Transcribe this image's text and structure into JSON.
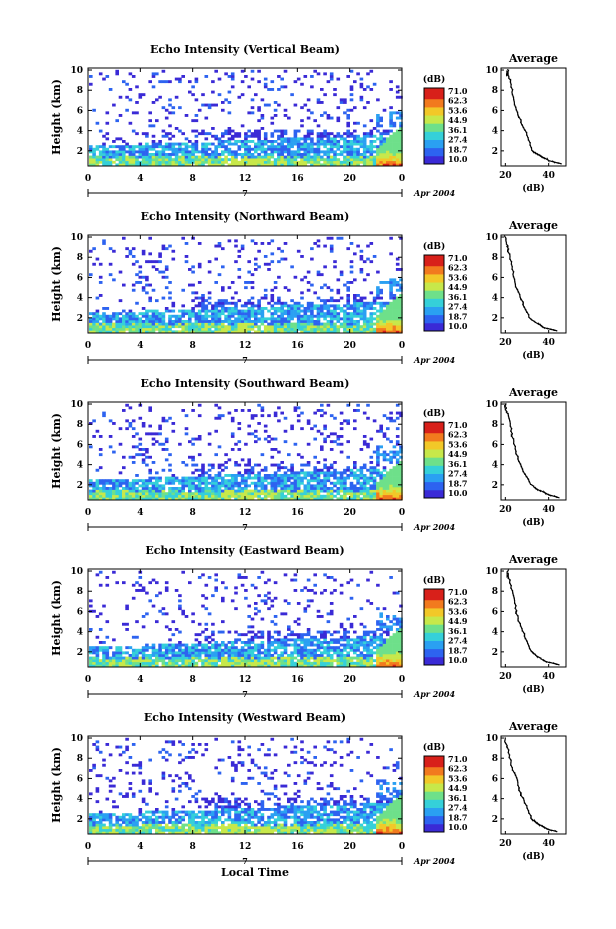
{
  "common": {
    "y_label": "Height (km)",
    "y_ticks": [
      2,
      4,
      6,
      8,
      10
    ],
    "x_ticks": [
      "0",
      "4",
      "8",
      "12",
      "16",
      "20",
      "0"
    ],
    "date_label_mid": "7",
    "date_label_right": "Apr 2004",
    "colorbar_unit": "(dB)",
    "colorbar_ticks": [
      "71.0",
      "62.3",
      "53.6",
      "44.9",
      "36.1",
      "27.4",
      "18.7",
      "10.0"
    ],
    "average_title": "Average",
    "average_xlabel": "(dB)",
    "average_xticks": [
      "20",
      "40"
    ],
    "bottom_xlabel": "Local Time",
    "colors": [
      "#3a2ad6",
      "#2d63f0",
      "#2aa0f2",
      "#35d0d9",
      "#6ee08a",
      "#c7e84a",
      "#f2c828",
      "#f27a1e",
      "#d8201a"
    ]
  },
  "chart_data": [
    {
      "type": "heatmap",
      "title": "Echo Intensity (Vertical Beam)",
      "xlabel": "",
      "ylabel": "Height (km)",
      "xlim": [
        0,
        24
      ],
      "ylim": [
        0.5,
        10.2
      ],
      "color_scale_db": [
        10.0,
        71.0
      ],
      "average_profile": {
        "x_db": [
          46,
          40,
          36,
          32,
          31,
          29,
          27,
          25,
          24,
          23,
          22,
          21,
          21
        ],
        "height_km": [
          0.7,
          1.0,
          1.5,
          2.0,
          3.0,
          4.0,
          5.0,
          6.0,
          7.0,
          8.0,
          9.0,
          9.5,
          10.0
        ],
        "xlim": [
          18,
          48
        ]
      }
    },
    {
      "type": "heatmap",
      "title": "Echo Intensity (Northward Beam)",
      "xlabel": "",
      "ylabel": "Height (km)",
      "xlim": [
        0,
        24
      ],
      "ylim": [
        0.5,
        10.2
      ],
      "color_scale_db": [
        10.0,
        71.0
      ],
      "average_profile": {
        "x_db": [
          44,
          38,
          34,
          31,
          29,
          27,
          25,
          24,
          23,
          22,
          21,
          20,
          20
        ],
        "height_km": [
          0.7,
          1.0,
          1.5,
          2.0,
          3.0,
          4.0,
          5.0,
          6.0,
          7.0,
          8.0,
          9.0,
          9.5,
          10.0
        ],
        "xlim": [
          18,
          48
        ]
      }
    },
    {
      "type": "heatmap",
      "title": "Echo Intensity (Southward Beam)",
      "xlabel": "",
      "ylabel": "Height (km)",
      "xlim": [
        0,
        24
      ],
      "ylim": [
        0.5,
        10.2
      ],
      "color_scale_db": [
        10.0,
        71.0
      ],
      "average_profile": {
        "x_db": [
          45,
          40,
          35,
          32,
          29,
          27,
          25,
          24,
          23,
          22,
          21,
          20,
          20
        ],
        "height_km": [
          0.7,
          1.0,
          1.5,
          2.0,
          3.0,
          4.0,
          5.0,
          6.0,
          7.0,
          8.0,
          9.0,
          9.5,
          10.0
        ],
        "xlim": [
          18,
          48
        ]
      }
    },
    {
      "type": "heatmap",
      "title": "Echo Intensity (Eastward Beam)",
      "xlabel": "",
      "ylabel": "Height (km)",
      "xlim": [
        0,
        24
      ],
      "ylim": [
        0.5,
        10.2
      ],
      "color_scale_db": [
        10.0,
        71.0
      ],
      "average_profile": {
        "x_db": [
          45,
          39,
          35,
          32,
          30,
          28,
          26,
          25,
          24,
          23,
          22,
          21,
          21
        ],
        "height_km": [
          0.7,
          1.0,
          1.5,
          2.0,
          3.0,
          4.0,
          5.0,
          6.0,
          7.0,
          8.0,
          9.0,
          9.5,
          10.0
        ],
        "xlim": [
          18,
          48
        ]
      }
    },
    {
      "type": "heatmap",
      "title": "Echo Intensity (Westward Beam)",
      "xlabel": "Local Time",
      "ylabel": "Height (km)",
      "xlim": [
        0,
        24
      ],
      "ylim": [
        0.5,
        10.2
      ],
      "color_scale_db": [
        10.0,
        71.0
      ],
      "average_profile": {
        "x_db": [
          44,
          39,
          35,
          32,
          30,
          28,
          26,
          25,
          23,
          22,
          21,
          20,
          20
        ],
        "height_km": [
          0.7,
          1.0,
          1.5,
          2.0,
          3.0,
          4.0,
          5.0,
          6.0,
          7.0,
          8.0,
          9.0,
          9.5,
          10.0
        ],
        "xlim": [
          18,
          48
        ]
      }
    }
  ]
}
